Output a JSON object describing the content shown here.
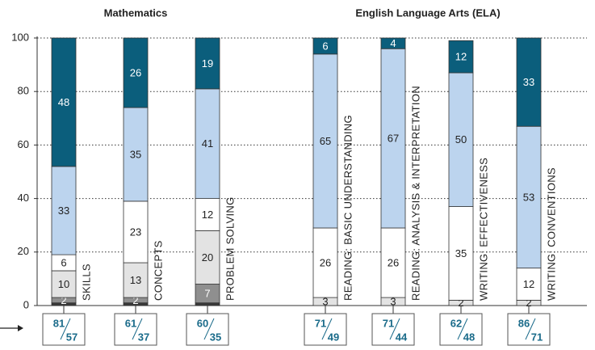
{
  "chart_data": [
    {
      "type": "stacked_bar",
      "title": "Mathematics",
      "categories": [
        "SKILLS",
        "CONCEPTS",
        "PROBLEM SOLVING"
      ],
      "ylim": [
        0,
        100
      ],
      "yticks": [
        0,
        20,
        40,
        60,
        80,
        100
      ],
      "grid": true,
      "series": [
        {
          "color": "#3a3a3a",
          "label_color": "#ffffff",
          "values": [
            1,
            1,
            1
          ]
        },
        {
          "color": "#8f8f8f",
          "label_color": "#ffffff",
          "values": [
            2,
            2,
            7
          ]
        },
        {
          "color": "#e3e3e3",
          "label_color": "#222222",
          "values": [
            10,
            13,
            20
          ]
        },
        {
          "color": "#ffffff",
          "label_color": "#222222",
          "values": [
            6,
            23,
            12
          ]
        },
        {
          "color": "#bcd4ee",
          "label_color": "#222222",
          "values": [
            33,
            35,
            41
          ]
        },
        {
          "color": "#0b5e7c",
          "label_color": "#ffffff",
          "values": [
            48,
            26,
            19
          ]
        }
      ],
      "scores": [
        {
          "top": 81,
          "bottom": 57
        },
        {
          "top": 61,
          "bottom": 37
        },
        {
          "top": 60,
          "bottom": 35
        }
      ]
    },
    {
      "type": "stacked_bar",
      "title": "English Language Arts (ELA)",
      "categories": [
        "READING: BASIC UNDERSTANDING",
        "READING: ANALYSIS & INTERPRETATION",
        "WRITING: EFFECTIVENESS",
        "WRITING: CONVENTIONS"
      ],
      "ylim": [
        0,
        100
      ],
      "series": [
        {
          "color": "#e3e3e3",
          "label_color": "#222222",
          "values": [
            3,
            3,
            2,
            2
          ]
        },
        {
          "color": "#ffffff",
          "label_color": "#222222",
          "values": [
            26,
            26,
            35,
            12
          ]
        },
        {
          "color": "#bcd4ee",
          "label_color": "#222222",
          "values": [
            65,
            67,
            50,
            53
          ]
        },
        {
          "color": "#0b5e7c",
          "label_color": "#ffffff",
          "values": [
            6,
            4,
            12,
            33
          ]
        }
      ],
      "scores": [
        {
          "top": 71,
          "bottom": 49
        },
        {
          "top": 71,
          "bottom": 44
        },
        {
          "top": 62,
          "bottom": 48
        },
        {
          "top": 86,
          "bottom": 71
        }
      ]
    }
  ]
}
